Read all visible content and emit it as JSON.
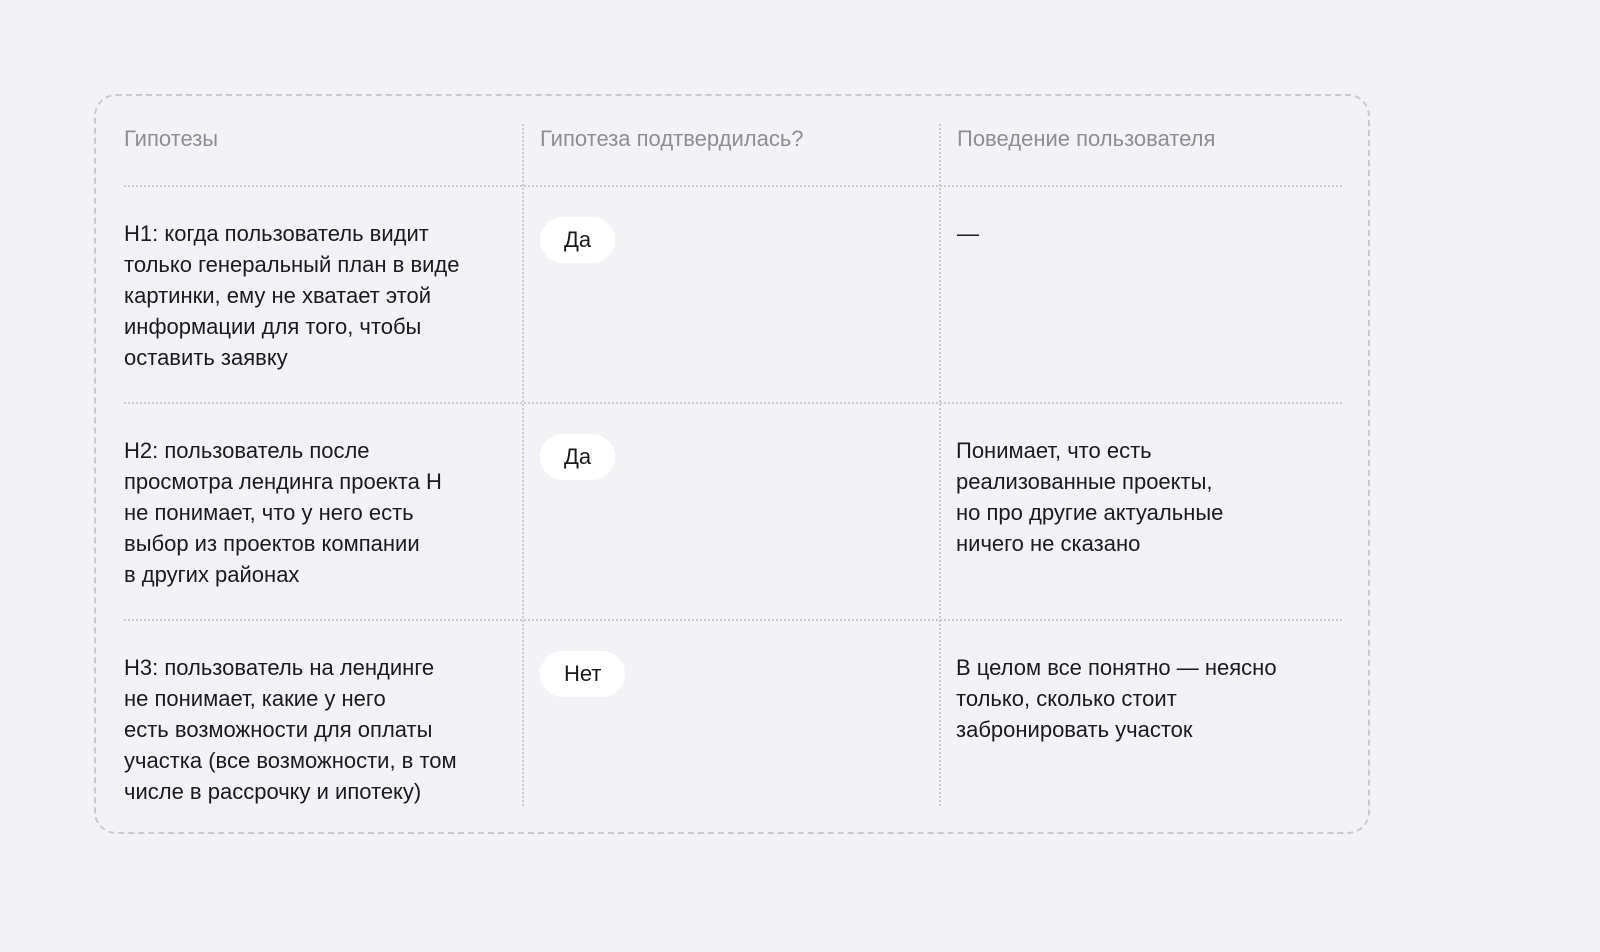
{
  "table": {
    "headers": [
      "Гипотезы",
      "Гипотеза подтвердилась?",
      "Поведение пользователя"
    ],
    "rows": [
      {
        "hypothesis": "H1: когда пользователь видит\nтолько генеральный план в виде\nкартинки, ему не хватает этой\nинформации для того, чтобы\nоставить заявку",
        "confirmed": "Да",
        "behavior": "—"
      },
      {
        "hypothesis": "H2: пользователь после\nпросмотра лендинга проекта H\nне понимает, что у него есть\nвыбор из проектов компании\nв других районах",
        "confirmed": "Да",
        "behavior": "Понимает, что есть\nреализованные проекты,\nно про другие актуальные\nничего не сказано"
      },
      {
        "hypothesis": "H3: пользователь на лендинге\nне понимает, какие у него\nесть возможности для оплаты\nучастка (все возможности, в том\nчисле в рассрочку и ипотеку)",
        "confirmed": "Нет",
        "behavior": "В целом все понятно — неясно\nтолько, сколько стоит\nзабронировать участок"
      }
    ]
  }
}
